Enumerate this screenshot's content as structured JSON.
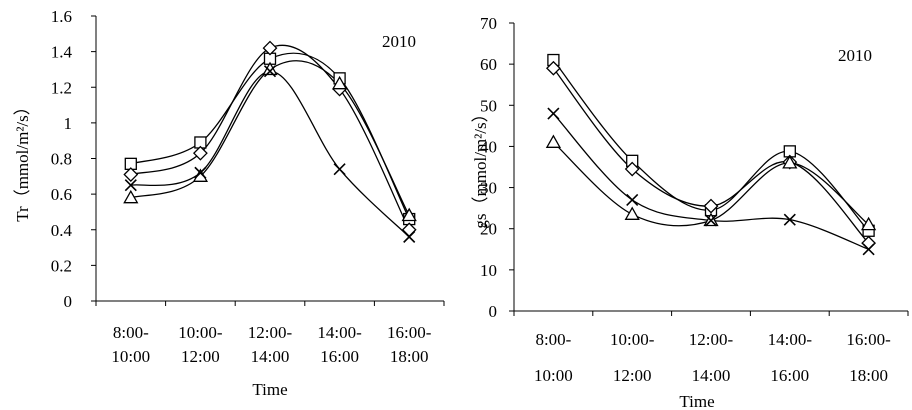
{
  "chart_data": [
    {
      "type": "line",
      "year_label": "2010",
      "ylabel": "Tr（mmol/m²/s）",
      "xlabel": "Time",
      "ylim": [
        0,
        1.6
      ],
      "yticks": [
        "0",
        "0.2",
        "0.4",
        "0.6",
        "0.8",
        "1",
        "1.2",
        "1.4",
        "1.6"
      ],
      "categories": [
        [
          "8:00-",
          "10:00"
        ],
        [
          "10:00-",
          "12:00"
        ],
        [
          "12:00-",
          "14:00"
        ],
        [
          "14:00-",
          "16:00"
        ],
        [
          "16:00-",
          "18:00"
        ]
      ],
      "series": [
        {
          "marker": "square",
          "values": [
            0.77,
            0.89,
            1.36,
            1.25,
            0.46
          ]
        },
        {
          "marker": "diamond",
          "values": [
            0.71,
            0.83,
            1.42,
            1.19,
            0.4
          ]
        },
        {
          "marker": "triangle",
          "values": [
            0.58,
            0.7,
            1.3,
            1.22,
            0.48
          ]
        },
        {
          "marker": "cross",
          "values": [
            0.65,
            0.72,
            1.29,
            0.74,
            0.36
          ]
        }
      ]
    },
    {
      "type": "line",
      "year_label": "2010",
      "ylabel": "gs（mmol/m²/s）",
      "xlabel": "Time",
      "ylim": [
        0,
        70
      ],
      "yticks": [
        "0",
        "10",
        "20",
        "30",
        "40",
        "50",
        "60",
        "70"
      ],
      "categories": [
        [
          "8:00-",
          "10:00"
        ],
        [
          "10:00-",
          "12:00"
        ],
        [
          "12:00-",
          "14:00"
        ],
        [
          "14:00-",
          "16:00"
        ],
        [
          "16:00-",
          "18:00"
        ]
      ],
      "series": [
        {
          "marker": "square",
          "values": [
            61,
            36.5,
            24.5,
            38.8,
            19.5
          ]
        },
        {
          "marker": "diamond",
          "values": [
            59,
            34.5,
            25.5,
            36.2,
            16.5
          ]
        },
        {
          "marker": "triangle",
          "values": [
            41,
            23.5,
            22.0,
            36.0,
            21.0
          ]
        },
        {
          "marker": "cross",
          "values": [
            48,
            27.0,
            22.0,
            22.2,
            15.0
          ]
        }
      ]
    }
  ]
}
